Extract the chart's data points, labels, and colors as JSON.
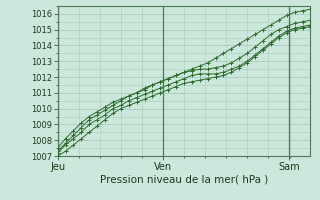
{
  "title": "",
  "xlabel": "Pression niveau de la mer( hPa )",
  "ylabel": "",
  "bg_color": "#cce8dc",
  "grid_color": "#aaccbb",
  "line_color": "#2d6b2d",
  "xlim": [
    0,
    1
  ],
  "ylim": [
    1007,
    1016.5
  ],
  "yticks": [
    1007,
    1008,
    1009,
    1010,
    1011,
    1012,
    1013,
    1014,
    1015,
    1016
  ],
  "xtick_labels": [
    "Jeu",
    "Ven",
    "Sam"
  ],
  "xtick_positions": [
    0.0,
    0.417,
    0.917
  ],
  "vline_positions": [
    0.0,
    0.417,
    0.917
  ],
  "series": [
    [
      1007.3,
      1007.8,
      1008.3,
      1008.8,
      1009.3,
      1009.6,
      1009.9,
      1010.2,
      1010.5,
      1010.8,
      1011.0,
      1011.3,
      1011.5,
      1011.7,
      1011.9,
      1012.1,
      1012.3,
      1012.5,
      1012.7,
      1012.9,
      1013.2,
      1013.5,
      1013.8,
      1014.1,
      1014.4,
      1014.7,
      1015.0,
      1015.3,
      1015.6,
      1015.9,
      1016.1,
      1016.2,
      1016.3
    ],
    [
      1007.5,
      1008.1,
      1008.6,
      1009.1,
      1009.5,
      1009.8,
      1010.1,
      1010.4,
      1010.6,
      1010.8,
      1011.0,
      1011.2,
      1011.5,
      1011.7,
      1011.9,
      1012.1,
      1012.3,
      1012.4,
      1012.5,
      1012.5,
      1012.6,
      1012.7,
      1012.9,
      1013.2,
      1013.5,
      1013.9,
      1014.3,
      1014.7,
      1015.0,
      1015.2,
      1015.4,
      1015.5,
      1015.6
    ],
    [
      1007.2,
      1007.7,
      1008.1,
      1008.5,
      1009.0,
      1009.3,
      1009.6,
      1010.0,
      1010.2,
      1010.5,
      1010.7,
      1010.9,
      1011.1,
      1011.3,
      1011.5,
      1011.7,
      1011.9,
      1012.1,
      1012.2,
      1012.2,
      1012.2,
      1012.3,
      1012.5,
      1012.7,
      1013.0,
      1013.4,
      1013.8,
      1014.2,
      1014.6,
      1014.9,
      1015.1,
      1015.2,
      1015.3
    ],
    [
      1007.0,
      1007.3,
      1007.7,
      1008.1,
      1008.5,
      1008.9,
      1009.3,
      1009.7,
      1010.0,
      1010.2,
      1010.4,
      1010.6,
      1010.8,
      1011.0,
      1011.2,
      1011.4,
      1011.6,
      1011.7,
      1011.8,
      1011.9,
      1012.0,
      1012.1,
      1012.3,
      1012.6,
      1012.9,
      1013.3,
      1013.7,
      1014.1,
      1014.5,
      1014.8,
      1015.0,
      1015.1,
      1015.2
    ]
  ]
}
